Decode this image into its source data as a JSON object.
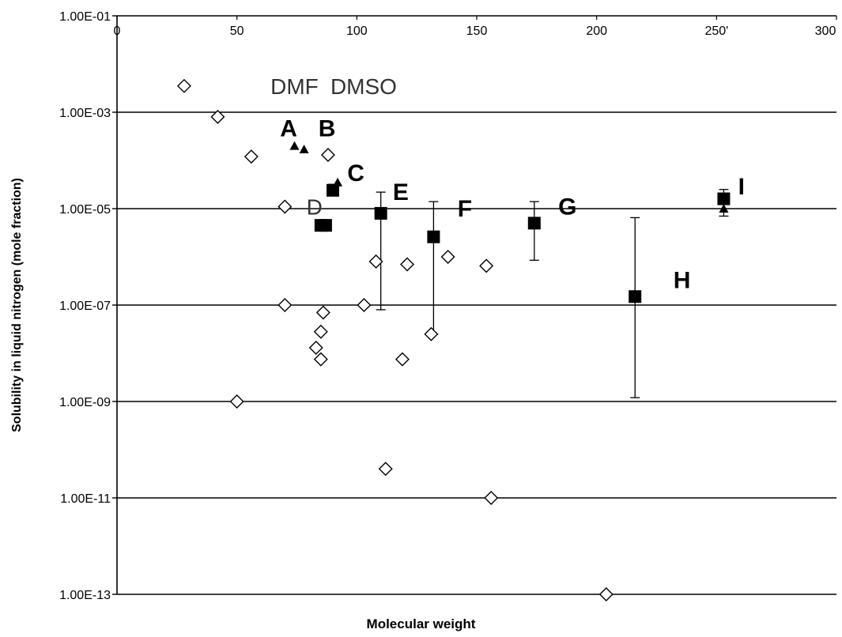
{
  "chart_data": {
    "type": "scatter",
    "xlabel": "Molecular weight",
    "ylabel": "Solubility in liquid nitrogen (mole fraction)",
    "xlim": [
      0,
      300
    ],
    "ylim_log10": [
      -13,
      -1
    ],
    "y_scale": "log",
    "x_ticks": [
      "0",
      "50",
      "100",
      "150",
      "200",
      "250'",
      "300"
    ],
    "y_ticks": [
      "1.00E-01",
      "1.00E-03",
      "1.00E-05",
      "1.00E-07",
      "1.00E-09",
      "1.00E-11",
      "1.00E-13"
    ],
    "grid": "horizontal",
    "series": [
      {
        "marker": "open-diamond",
        "points": [
          {
            "x": 28,
            "y": 0.0035
          },
          {
            "x": 42,
            "y": 0.0008
          },
          {
            "x": 56,
            "y": 0.00012
          },
          {
            "x": 70,
            "y": 1.1e-05
          },
          {
            "x": 88,
            "y": 0.00013
          },
          {
            "x": 108,
            "y": 8e-07
          },
          {
            "x": 121,
            "y": 7e-07
          },
          {
            "x": 138,
            "y": 1e-06
          },
          {
            "x": 154,
            "y": 6.5e-07
          },
          {
            "x": 70,
            "y": 1e-07
          },
          {
            "x": 103,
            "y": 1e-07
          },
          {
            "x": 86,
            "y": 7e-08
          },
          {
            "x": 85,
            "y": 2.8e-08
          },
          {
            "x": 83,
            "y": 1.3e-08
          },
          {
            "x": 85,
            "y": 7.5e-09
          },
          {
            "x": 119,
            "y": 7.5e-09
          },
          {
            "x": 131,
            "y": 2.5e-08
          },
          {
            "x": 50,
            "y": 1e-09
          },
          {
            "x": 112,
            "y": 4e-11
          },
          {
            "x": 156,
            "y": 1e-11
          },
          {
            "x": 204,
            "y": 1e-13
          }
        ]
      },
      {
        "marker": "filled-triangle",
        "points": [
          {
            "x": 74,
            "y": 0.0002
          },
          {
            "x": 78,
            "y": 0.00017
          },
          {
            "x": 92,
            "y": 3.5e-05
          },
          {
            "x": 253,
            "y": 1e-05
          }
        ]
      },
      {
        "marker": "filled-square",
        "points": [
          {
            "x": 90,
            "y": 2.4e-05,
            "err_low": 2.4e-05,
            "err_high": 3.2e-05
          },
          {
            "x": 85,
            "y": 4.5e-06
          },
          {
            "x": 87,
            "y": 4.5e-06
          },
          {
            "x": 110,
            "y": 8e-06,
            "err_low": 8e-08,
            "err_high": 2.2e-05
          },
          {
            "x": 132,
            "y": 2.6e-06,
            "err_low": 2.5e-08,
            "err_high": 1.4e-05
          },
          {
            "x": 174,
            "y": 5e-06,
            "err_low": 8.5e-07,
            "err_high": 1.4e-05
          },
          {
            "x": 216,
            "y": 1.5e-07,
            "err_low": 1.2e-09,
            "err_high": 6.5e-06
          },
          {
            "x": 253,
            "y": 1.6e-05,
            "err_low": 7e-06,
            "err_high": 2.5e-05
          }
        ]
      }
    ],
    "annotations": [
      {
        "text": "DMF",
        "x": 64,
        "y": 0.0035,
        "style": "plain"
      },
      {
        "text": "DMSO",
        "x": 89,
        "y": 0.0035,
        "style": "plain"
      },
      {
        "text": "A",
        "x": 68,
        "y": 0.00046,
        "style": "bold"
      },
      {
        "text": "B",
        "x": 84,
        "y": 0.00046,
        "style": "bold"
      },
      {
        "text": "C",
        "x": 96,
        "y": 5.5e-05,
        "style": "bold"
      },
      {
        "text": "D",
        "x": 79,
        "y": 1.1e-05,
        "style": "plain"
      },
      {
        "text": "E",
        "x": 115,
        "y": 2.2e-05,
        "style": "bold"
      },
      {
        "text": "F",
        "x": 142,
        "y": 1e-05,
        "style": "bold"
      },
      {
        "text": "G",
        "x": 184,
        "y": 1.1e-05,
        "style": "bold"
      },
      {
        "text": "H",
        "x": 232,
        "y": 3.3e-07,
        "style": "bold"
      },
      {
        "text": "I",
        "x": 259,
        "y": 2.9e-05,
        "style": "bold"
      }
    ]
  }
}
